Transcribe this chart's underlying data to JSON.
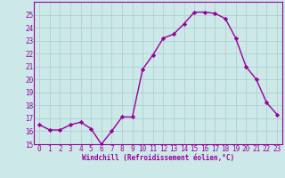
{
  "x": [
    0,
    1,
    2,
    3,
    4,
    5,
    6,
    7,
    8,
    9,
    10,
    11,
    12,
    13,
    14,
    15,
    16,
    17,
    18,
    19,
    20,
    21,
    22,
    23
  ],
  "y": [
    16.5,
    16.1,
    16.1,
    16.5,
    16.7,
    16.2,
    15.0,
    16.0,
    17.1,
    17.1,
    20.8,
    21.9,
    23.2,
    23.5,
    24.3,
    25.2,
    25.2,
    25.1,
    24.7,
    23.2,
    21.0,
    20.0,
    18.2,
    17.3
  ],
  "line_color": "#990099",
  "marker": "D",
  "marker_size": 2.2,
  "bg_color": "#cce8e8",
  "grid_color": "#aacccc",
  "xlabel": "Windchill (Refroidissement éolien,°C)",
  "xlabel_color": "#990099",
  "tick_color": "#990099",
  "label_color": "#990099",
  "ylim": [
    15,
    26
  ],
  "yticks": [
    15,
    16,
    17,
    18,
    19,
    20,
    21,
    22,
    23,
    24,
    25
  ],
  "xlim": [
    -0.5,
    23.5
  ],
  "xticks": [
    0,
    1,
    2,
    3,
    4,
    5,
    6,
    7,
    8,
    9,
    10,
    11,
    12,
    13,
    14,
    15,
    16,
    17,
    18,
    19,
    20,
    21,
    22,
    23
  ],
  "linewidth": 1.0,
  "xlabel_fontsize": 5.5,
  "ylabel_fontsize": 5.5,
  "tick_fontsize": 5.5
}
